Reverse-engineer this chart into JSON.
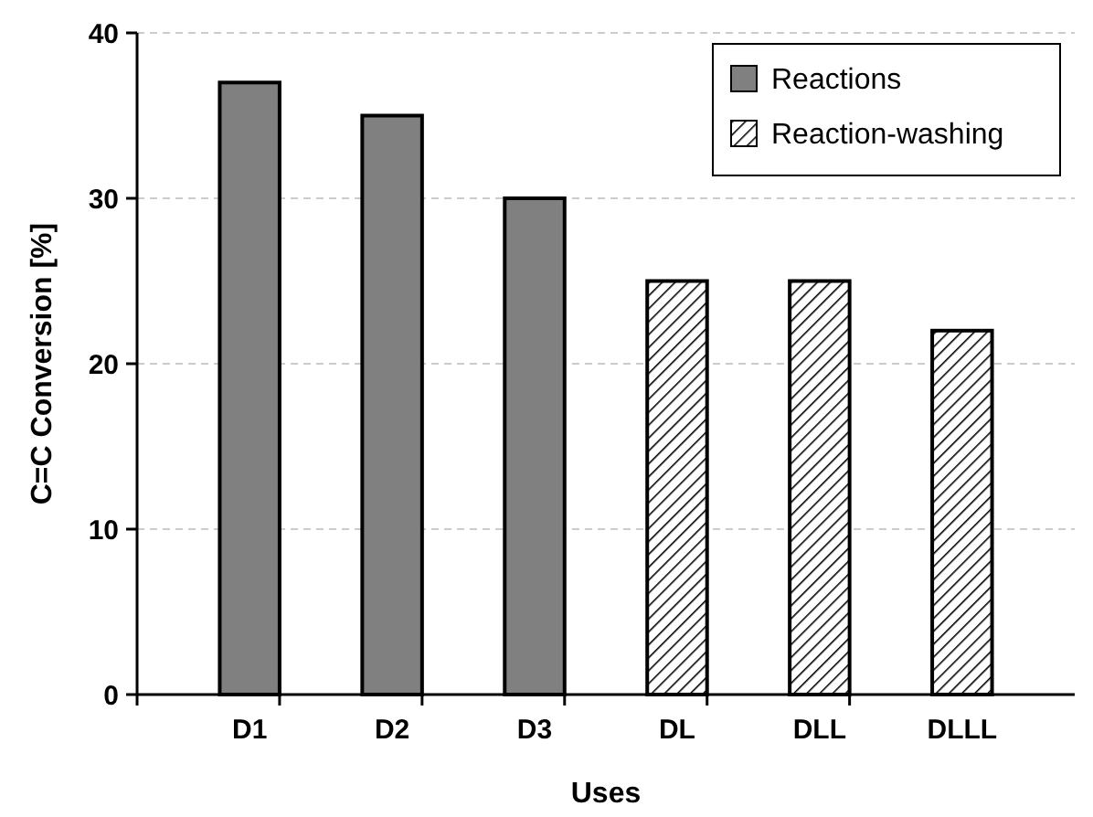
{
  "chart_data": {
    "type": "bar",
    "xlabel": "Uses",
    "ylabel": "C=C Conversion [%]",
    "categories": [
      "D1",
      "D2",
      "D3",
      "DL",
      "DLL",
      "DLLL"
    ],
    "series": [
      {
        "name": "Reactions",
        "color": "#808080",
        "values": [
          37,
          35,
          30,
          null,
          null,
          null
        ]
      },
      {
        "name": "Reaction-washing",
        "color": "#000000",
        "values": [
          null,
          null,
          null,
          25,
          25,
          22
        ]
      }
    ],
    "ylim": [
      0,
      40
    ],
    "yticks": [
      0,
      10,
      20,
      30,
      40
    ],
    "grid": "y",
    "legend": "top right"
  }
}
